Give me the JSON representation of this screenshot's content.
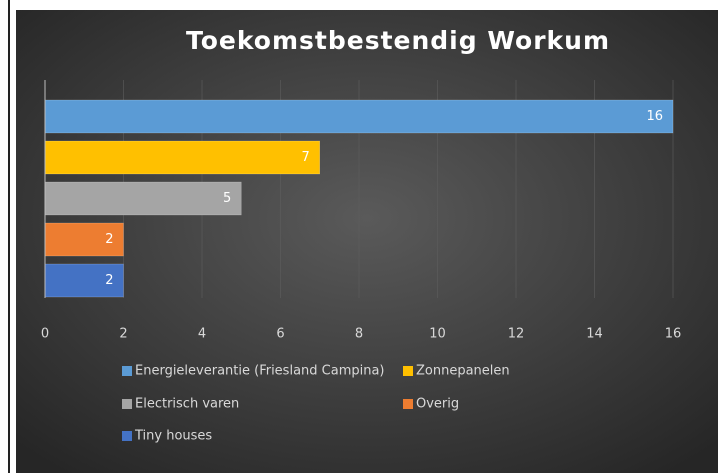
{
  "chart_data": {
    "type": "bar",
    "orientation": "horizontal",
    "title": "Toekomstbestendig Workum",
    "categories": [
      "Energieleverantie (Friesland Campina)",
      "Zonnepanelen",
      "Electrisch varen",
      "Overig",
      "Tiny houses"
    ],
    "values": [
      16,
      7,
      5,
      2,
      2
    ],
    "colors": [
      "#5b9bd5",
      "#ffc000",
      "#a5a5a5",
      "#ed7d31",
      "#4472c4"
    ],
    "xlim": [
      0,
      16
    ],
    "xticks": [
      0,
      2,
      4,
      6,
      8,
      10,
      12,
      14,
      16
    ],
    "grid": true,
    "legend": "bottom"
  }
}
